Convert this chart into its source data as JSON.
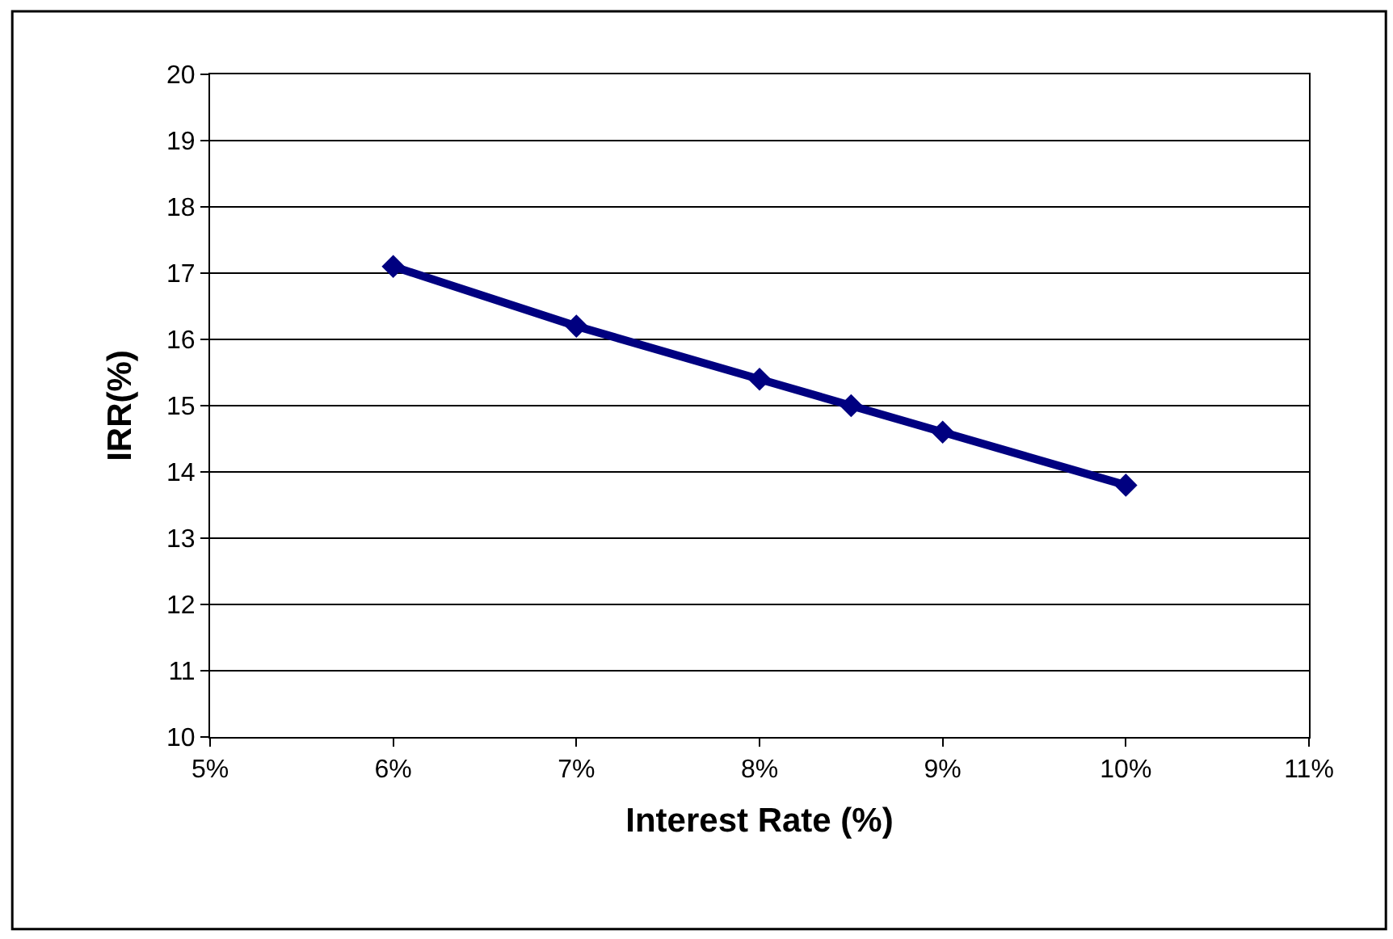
{
  "chart_data": {
    "type": "line",
    "xlabel": "Interest Rate (%)",
    "ylabel": "IRR(%)",
    "x": [
      6,
      7,
      8,
      8.5,
      9,
      10
    ],
    "series": [
      {
        "color": "#000080",
        "values": [
          17.1,
          16.2,
          15.4,
          15.0,
          14.6,
          13.8
        ]
      }
    ],
    "xlim": [
      5,
      11
    ],
    "xticks": [
      {
        "value": 5,
        "label": "5%"
      },
      {
        "value": 6,
        "label": "6%"
      },
      {
        "value": 7,
        "label": "7%"
      },
      {
        "value": 8,
        "label": "8%"
      },
      {
        "value": 9,
        "label": "9%"
      },
      {
        "value": 10,
        "label": "10%"
      },
      {
        "value": 11,
        "label": "11%"
      }
    ],
    "ylim": [
      10,
      20
    ],
    "yticks": [
      10,
      11,
      12,
      13,
      14,
      15,
      16,
      17,
      18,
      19,
      20
    ],
    "grid": "y",
    "marker": "diamond",
    "line_style": "solid"
  }
}
